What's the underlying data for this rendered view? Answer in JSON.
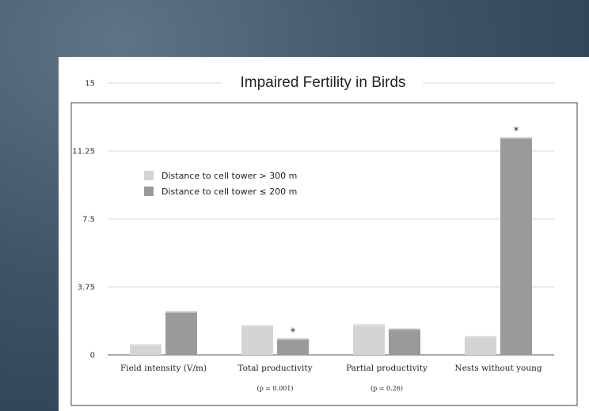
{
  "chart_data": {
    "type": "bar",
    "title": "Impaired Fertility in Birds",
    "categories": [
      "Field intensity (V/m)",
      "Total productivity",
      "Partial productivity",
      "Nests without young"
    ],
    "notes": [
      "",
      "(p = 0.001)",
      "(p = 0.26)",
      ""
    ],
    "series": [
      {
        "name": "Distance to cell tower > 300 m",
        "color": "#d4d4d4",
        "values": [
          0.6,
          1.65,
          1.7,
          1.05
        ],
        "markers": [
          "",
          "",
          "",
          ""
        ]
      },
      {
        "name": "Distance to cell tower ≤ 200 m",
        "color": "#9a9a9a",
        "values": [
          2.4,
          0.9,
          1.45,
          12.0
        ],
        "markers": [
          "",
          "*",
          "",
          "*"
        ]
      }
    ],
    "ylim": [
      0,
      15
    ],
    "yticks": [
      {
        "value": 0,
        "label": "0"
      },
      {
        "value": 3.75,
        "label": "3.75"
      },
      {
        "value": 7.5,
        "label": "7.5"
      },
      {
        "value": 11.25,
        "label": "11.25"
      },
      {
        "value": 15,
        "label": "15"
      }
    ],
    "grid": true,
    "legend": "top-left"
  }
}
